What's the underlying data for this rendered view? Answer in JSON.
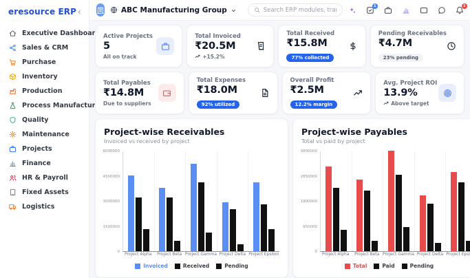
{
  "app": {
    "brand": "eresource ERP"
  },
  "sidebar": {
    "items": [
      {
        "label": "Executive Dashboard",
        "icon": "home-icon",
        "color": "#475569"
      },
      {
        "label": "Sales & CRM",
        "icon": "share-nodes-icon",
        "color": "#3b82f6"
      },
      {
        "label": "Purchase",
        "icon": "cart-icon",
        "color": "#f97316"
      },
      {
        "label": "Inventory",
        "icon": "box-icon",
        "color": "#f59e0b"
      },
      {
        "label": "Production",
        "icon": "factory-icon",
        "color": "#ea580c"
      },
      {
        "label": "Process Manufacturing",
        "icon": "flask-icon",
        "color": "#16a34a"
      },
      {
        "label": "Quality",
        "icon": "shield-icon",
        "color": "#10b981"
      },
      {
        "label": "Maintenance",
        "icon": "gear-icon",
        "color": "#d97706"
      },
      {
        "label": "Projects",
        "icon": "briefcase-icon",
        "color": "#2563eb"
      },
      {
        "label": "Finance",
        "icon": "bar-chart-icon",
        "color": "#64748b"
      },
      {
        "label": "HR & Payroll",
        "icon": "users-icon",
        "color": "#e11d48"
      },
      {
        "label": "Fixed Assets",
        "icon": "tablet-icon",
        "color": "#6b7280"
      },
      {
        "label": "Logistics",
        "icon": "truck-icon",
        "color": "#f97316"
      }
    ]
  },
  "header": {
    "org_name": "ABC Manufacturing Group",
    "search_placeholder": "Search ERP modules, transactions, reports...",
    "tasks_badge": "1",
    "alerts_badge": "1"
  },
  "kpis": [
    {
      "label": "Active Projects",
      "value": "5",
      "sub": "All on track",
      "icon": "briefcase-icon"
    },
    {
      "label": "Total Invoiced",
      "value": "₹20.5M",
      "sub": "+15.2%",
      "icon": "invoice-icon"
    },
    {
      "label": "Total Received",
      "value": "₹15.8M",
      "sub": "77% collected",
      "icon": "dollar-icon"
    },
    {
      "label": "Pending Receivables",
      "value": "₹4.7M",
      "sub": "23% pending",
      "icon": "clock-icon"
    },
    {
      "label": "Total Payables",
      "value": "₹14.8M",
      "sub": "Due to suppliers",
      "icon": "wallet-icon"
    },
    {
      "label": "Total Expenses",
      "value": "₹18.0M",
      "sub": "92% utilized",
      "icon": "file-icon"
    },
    {
      "label": "Overall Profit",
      "value": "₹2.5M",
      "sub": "12.2% margin",
      "icon": "trend-up-icon"
    },
    {
      "label": "Avg. Project ROI",
      "value": "13.9%",
      "sub": "Above target",
      "icon": "target-icon"
    }
  ],
  "colors": {
    "accent_blue": "#2563eb",
    "bar_blue": "#5b8ef4",
    "bar_red": "#e84b4b",
    "bar_black": "#111111"
  },
  "chart_data": [
    {
      "type": "bar",
      "title": "Project-wise Receivables",
      "subtitle": "Invoiced vs received by project",
      "categories": [
        "Project Alpha",
        "Project Beta",
        "Project Gamma",
        "Project Delta",
        "Project Epsilon"
      ],
      "series": [
        {
          "name": "Invoiced",
          "color": "#5b8ef4",
          "values": [
            4500000,
            3800000,
            5200000,
            2900000,
            4100000
          ]
        },
        {
          "name": "Received",
          "color": "#111111",
          "values": [
            3200000,
            3200000,
            4100000,
            2500000,
            2800000
          ]
        },
        {
          "name": "Pending",
          "color": "#111111",
          "values": [
            1300000,
            600000,
            1100000,
            400000,
            1300000
          ]
        }
      ],
      "ylim": [
        0,
        6000000
      ],
      "yticks": [
        0,
        1500000,
        3000000,
        4500000,
        6000000
      ],
      "grid": "vertical",
      "legend_position": "bottom"
    },
    {
      "type": "bar",
      "title": "Project-wise Payables",
      "subtitle": "Total vs paid by project",
      "categories": [
        "Project Alpha",
        "Project Beta",
        "Project Gamma",
        "Project Delta",
        "Project Epsilon"
      ],
      "series": [
        {
          "name": "Total",
          "color": "#e84b4b",
          "values": [
            3200000,
            2700000,
            3800000,
            2100000,
            3000000
          ]
        },
        {
          "name": "Paid",
          "color": "#111111",
          "values": [
            2400000,
            2300000,
            2900000,
            1800000,
            2600000
          ]
        },
        {
          "name": "Pending",
          "color": "#111111",
          "values": [
            800000,
            400000,
            900000,
            300000,
            400000
          ]
        }
      ],
      "ylim": [
        0,
        3800000
      ],
      "yticks": [
        0,
        950000,
        1900000,
        2850000,
        3800000
      ],
      "grid": "vertical",
      "legend_position": "bottom"
    }
  ]
}
